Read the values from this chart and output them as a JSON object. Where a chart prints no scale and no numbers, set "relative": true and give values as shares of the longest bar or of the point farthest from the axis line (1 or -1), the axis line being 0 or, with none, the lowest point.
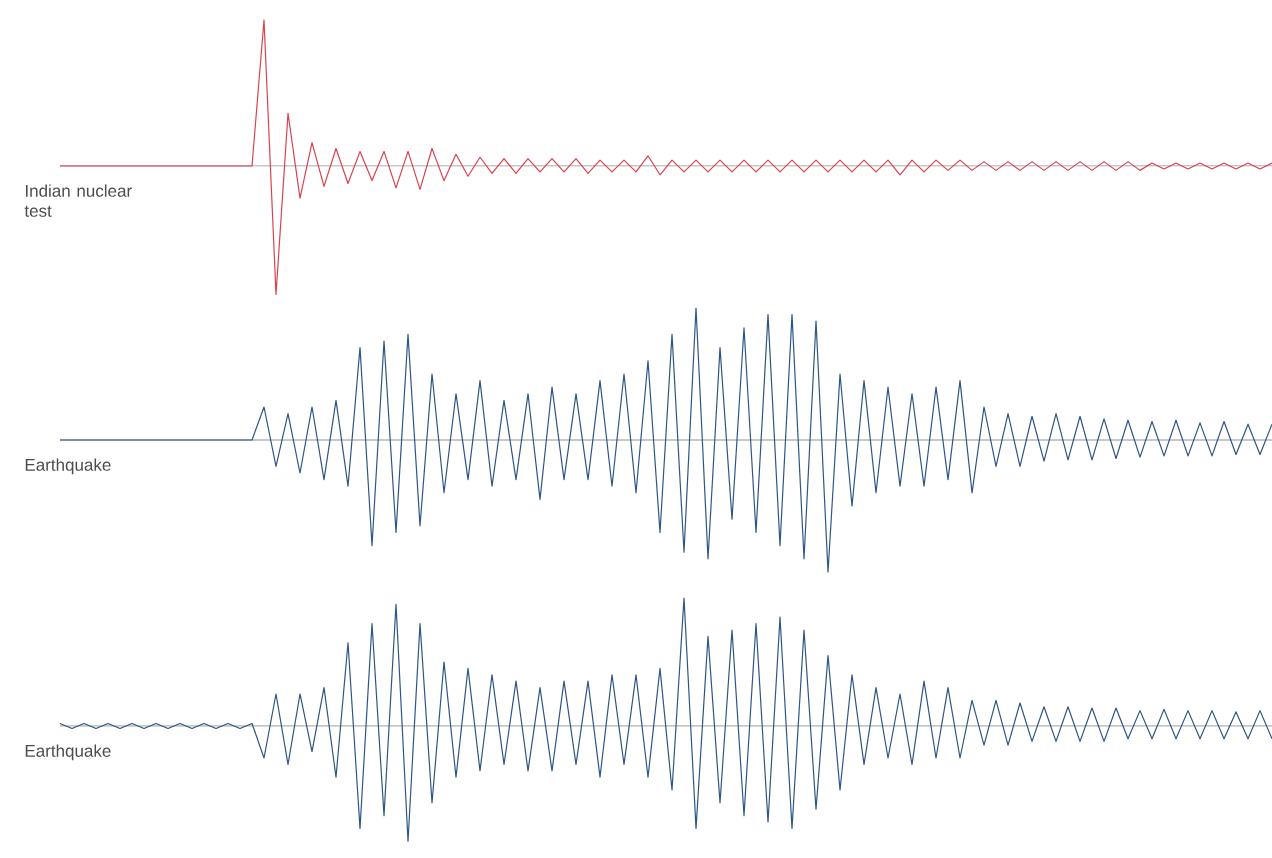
{
  "chart_data": [
    {
      "type": "line",
      "relative": true,
      "categories": [
        null,
        null,
        null,
        null,
        null,
        null,
        null,
        null,
        null,
        null,
        null,
        null,
        null,
        null,
        null,
        null,
        null,
        null,
        null,
        null,
        null,
        null,
        null,
        null,
        null,
        null,
        null,
        null,
        null,
        null,
        null,
        null,
        null,
        null,
        null,
        null,
        null,
        null,
        null,
        null,
        null,
        null,
        null,
        null,
        null,
        null,
        null,
        null,
        null,
        null,
        null,
        null,
        null,
        null,
        null,
        null,
        null,
        null,
        null,
        null,
        null,
        null,
        null,
        null,
        null,
        null,
        null,
        null,
        null,
        null,
        null,
        null,
        null,
        null,
        null,
        null,
        null,
        null,
        null,
        null,
        null,
        null,
        null,
        null,
        null,
        null,
        null,
        null,
        null,
        null,
        null,
        null,
        null,
        null,
        null,
        null,
        null,
        null,
        null,
        null,
        null,
        null
      ],
      "series": [
        {
          "name": "Indian nuclear test",
          "color": "#d9434f",
          "values": [
            0,
            0,
            0,
            0,
            0,
            0,
            0,
            0,
            0,
            0,
            0,
            0,
            0,
            0,
            0,
            0,
            0,
            1,
            -0.88,
            0.36,
            -0.22,
            0.16,
            -0.14,
            0.12,
            -0.12,
            0.1,
            -0.1,
            0.1,
            -0.15,
            0.1,
            -0.16,
            0.12,
            -0.1,
            0.08,
            -0.07,
            0.06,
            -0.05,
            0.05,
            -0.05,
            0.05,
            -0.04,
            0.05,
            -0.04,
            0.05,
            -0.05,
            0.04,
            -0.04,
            0.04,
            -0.04,
            0.07,
            -0.06,
            0.04,
            -0.04,
            0.04,
            -0.04,
            0.04,
            -0.04,
            0.04,
            -0.04,
            0.04,
            -0.04,
            0.04,
            -0.04,
            0.04,
            -0.04,
            0.04,
            -0.04,
            0.04,
            -0.04,
            0.04,
            -0.06,
            0.04,
            -0.04,
            0.04,
            -0.03,
            0.04,
            -0.03,
            0.03,
            -0.03,
            0.03,
            -0.03,
            0.03,
            -0.03,
            0.03,
            -0.03,
            0.03,
            -0.03,
            0.03,
            -0.03,
            0.03,
            -0.03,
            0.02,
            -0.02,
            0.02,
            -0.02,
            0.02,
            -0.02,
            0.02,
            -0.02,
            0.02,
            -0.02,
            0.02
          ]
        }
      ]
    },
    {
      "type": "line",
      "relative": true,
      "categories": [
        null,
        null,
        null,
        null,
        null,
        null,
        null,
        null,
        null,
        null,
        null,
        null,
        null,
        null,
        null,
        null,
        null,
        null,
        null,
        null,
        null,
        null,
        null,
        null,
        null,
        null,
        null,
        null,
        null,
        null,
        null,
        null,
        null,
        null,
        null,
        null,
        null,
        null,
        null,
        null,
        null,
        null,
        null,
        null,
        null,
        null,
        null,
        null,
        null,
        null,
        null,
        null,
        null,
        null,
        null,
        null,
        null,
        null,
        null,
        null,
        null,
        null,
        null,
        null,
        null,
        null,
        null,
        null,
        null,
        null,
        null,
        null,
        null,
        null,
        null,
        null,
        null,
        null,
        null,
        null,
        null,
        null,
        null,
        null,
        null,
        null,
        null,
        null,
        null,
        null,
        null,
        null,
        null,
        null,
        null,
        null,
        null,
        null,
        null,
        null,
        null,
        null
      ],
      "series": [
        {
          "name": "Earthquake",
          "color": "#2f5584",
          "values": [
            0,
            0,
            0,
            0,
            0,
            0,
            0,
            0,
            0,
            0,
            0,
            0,
            0,
            0,
            0,
            0,
            0,
            0.25,
            -0.2,
            0.2,
            -0.25,
            0.25,
            -0.3,
            0.3,
            -0.35,
            0.7,
            -0.8,
            0.75,
            -0.7,
            0.8,
            -0.65,
            0.5,
            -0.4,
            0.35,
            -0.3,
            0.45,
            -0.35,
            0.3,
            -0.3,
            0.35,
            -0.45,
            0.4,
            -0.3,
            0.35,
            -0.3,
            0.45,
            -0.35,
            0.5,
            -0.4,
            0.6,
            -0.7,
            0.8,
            -0.85,
            1,
            -0.9,
            0.7,
            -0.6,
            0.85,
            -0.7,
            0.95,
            -0.8,
            0.95,
            -0.9,
            0.9,
            -1,
            0.5,
            -0.5,
            0.45,
            -0.4,
            0.4,
            -0.35,
            0.35,
            -0.35,
            0.4,
            -0.3,
            0.45,
            -0.4,
            0.25,
            -0.2,
            0.2,
            -0.2,
            0.18,
            -0.16,
            0.2,
            -0.15,
            0.18,
            -0.15,
            0.16,
            -0.14,
            0.15,
            -0.13,
            0.14,
            -0.12,
            0.15,
            -0.12,
            0.13,
            -0.12,
            0.14,
            -0.11,
            0.12,
            -0.11,
            0.12
          ]
        }
      ]
    },
    {
      "type": "line",
      "relative": true,
      "categories": [
        null,
        null,
        null,
        null,
        null,
        null,
        null,
        null,
        null,
        null,
        null,
        null,
        null,
        null,
        null,
        null,
        null,
        null,
        null,
        null,
        null,
        null,
        null,
        null,
        null,
        null,
        null,
        null,
        null,
        null,
        null,
        null,
        null,
        null,
        null,
        null,
        null,
        null,
        null,
        null,
        null,
        null,
        null,
        null,
        null,
        null,
        null,
        null,
        null,
        null,
        null,
        null,
        null,
        null,
        null,
        null,
        null,
        null,
        null,
        null,
        null,
        null,
        null,
        null,
        null,
        null,
        null,
        null,
        null,
        null,
        null,
        null,
        null,
        null,
        null,
        null,
        null,
        null,
        null,
        null,
        null,
        null,
        null,
        null,
        null,
        null,
        null,
        null,
        null,
        null,
        null,
        null,
        null,
        null,
        null,
        null,
        null,
        null,
        null,
        null,
        null,
        null
      ],
      "series": [
        {
          "name": "Earthquake",
          "color": "#2f5584",
          "values": [
            0.02,
            -0.02,
            0.02,
            -0.02,
            0.02,
            -0.02,
            0.02,
            -0.02,
            0.02,
            -0.02,
            0.02,
            -0.02,
            0.02,
            -0.02,
            0.02,
            -0.02,
            0.02,
            -0.25,
            0.25,
            -0.3,
            0.25,
            -0.2,
            0.3,
            -0.4,
            0.65,
            -0.8,
            0.8,
            -0.7,
            0.95,
            -0.9,
            0.8,
            -0.6,
            0.5,
            -0.4,
            0.45,
            -0.35,
            0.4,
            -0.3,
            0.35,
            -0.35,
            0.3,
            -0.35,
            0.35,
            -0.3,
            0.35,
            -0.4,
            0.4,
            -0.3,
            0.4,
            -0.4,
            0.45,
            -0.5,
            1,
            -0.8,
            0.7,
            -0.6,
            0.75,
            -0.7,
            0.8,
            -0.75,
            0.85,
            -0.8,
            0.75,
            -0.65,
            0.55,
            -0.5,
            0.4,
            -0.3,
            0.3,
            -0.25,
            0.25,
            -0.3,
            0.35,
            -0.25,
            0.3,
            -0.25,
            0.2,
            -0.15,
            0.2,
            -0.15,
            0.18,
            -0.12,
            0.15,
            -0.12,
            0.15,
            -0.12,
            0.14,
            -0.12,
            0.14,
            -0.1,
            0.12,
            -0.1,
            0.13,
            -0.1,
            0.12,
            -0.1,
            0.12,
            -0.1,
            0.11,
            -0.1,
            0.12,
            -0.1
          ]
        }
      ]
    }
  ]
}
